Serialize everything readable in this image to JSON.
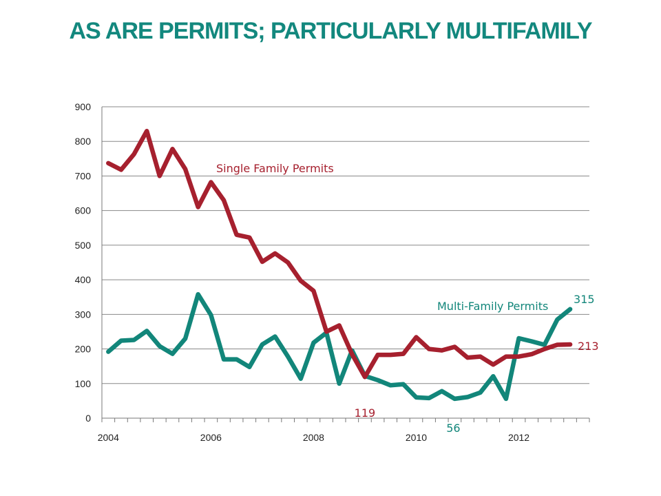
{
  "slide": {
    "title": "AS ARE PERMITS; PARTICULARLY MULTIFAMILY"
  },
  "colors": {
    "title": "#13887e",
    "single_family": "#a6202e",
    "multi_family": "#12867a",
    "grid": "#888888"
  },
  "chart_data": {
    "type": "line",
    "title": "",
    "xlabel": "",
    "ylabel": "",
    "x_ticks": [
      "2004",
      "2006",
      "2008",
      "2010",
      "2012"
    ],
    "y_ticks": [
      "0",
      "100",
      "200",
      "300",
      "400",
      "500",
      "600",
      "700",
      "800",
      "900"
    ],
    "ylim": [
      0,
      900
    ],
    "x_unit": "quarter",
    "x_start": "2004 Q1",
    "grid": "horizontal",
    "legend": "none (inline labels)",
    "series": [
      {
        "name": "Single Family Permits",
        "values": [
          737,
          718,
          763,
          830,
          700,
          778,
          720,
          610,
          682,
          630,
          530,
          522,
          452,
          476,
          450,
          397,
          368,
          250,
          268,
          185,
          119,
          183,
          183,
          186,
          234,
          200,
          196,
          206,
          175,
          178,
          155,
          178,
          178,
          185,
          200,
          212,
          213
        ]
      },
      {
        "name": "Multi-Family Permits",
        "values": [
          192,
          224,
          226,
          252,
          208,
          186,
          230,
          358,
          298,
          170,
          170,
          148,
          213,
          236,
          178,
          114,
          218,
          247,
          100,
          196,
          122,
          110,
          95,
          98,
          60,
          58,
          78,
          56,
          61,
          74,
          121,
          56,
          231,
          222,
          212,
          285,
          315
        ]
      }
    ],
    "annotations": [
      {
        "text": "Single Family Permits",
        "series": "Single Family Permits"
      },
      {
        "text": "Multi-Family Permits",
        "series": "Multi-Family Permits"
      },
      {
        "text": "119",
        "series": "Single Family Permits"
      },
      {
        "text": "56",
        "series": "Multi-Family Permits"
      },
      {
        "text": "315",
        "series": "Multi-Family Permits"
      },
      {
        "text": "213",
        "series": "Single Family Permits"
      }
    ]
  }
}
